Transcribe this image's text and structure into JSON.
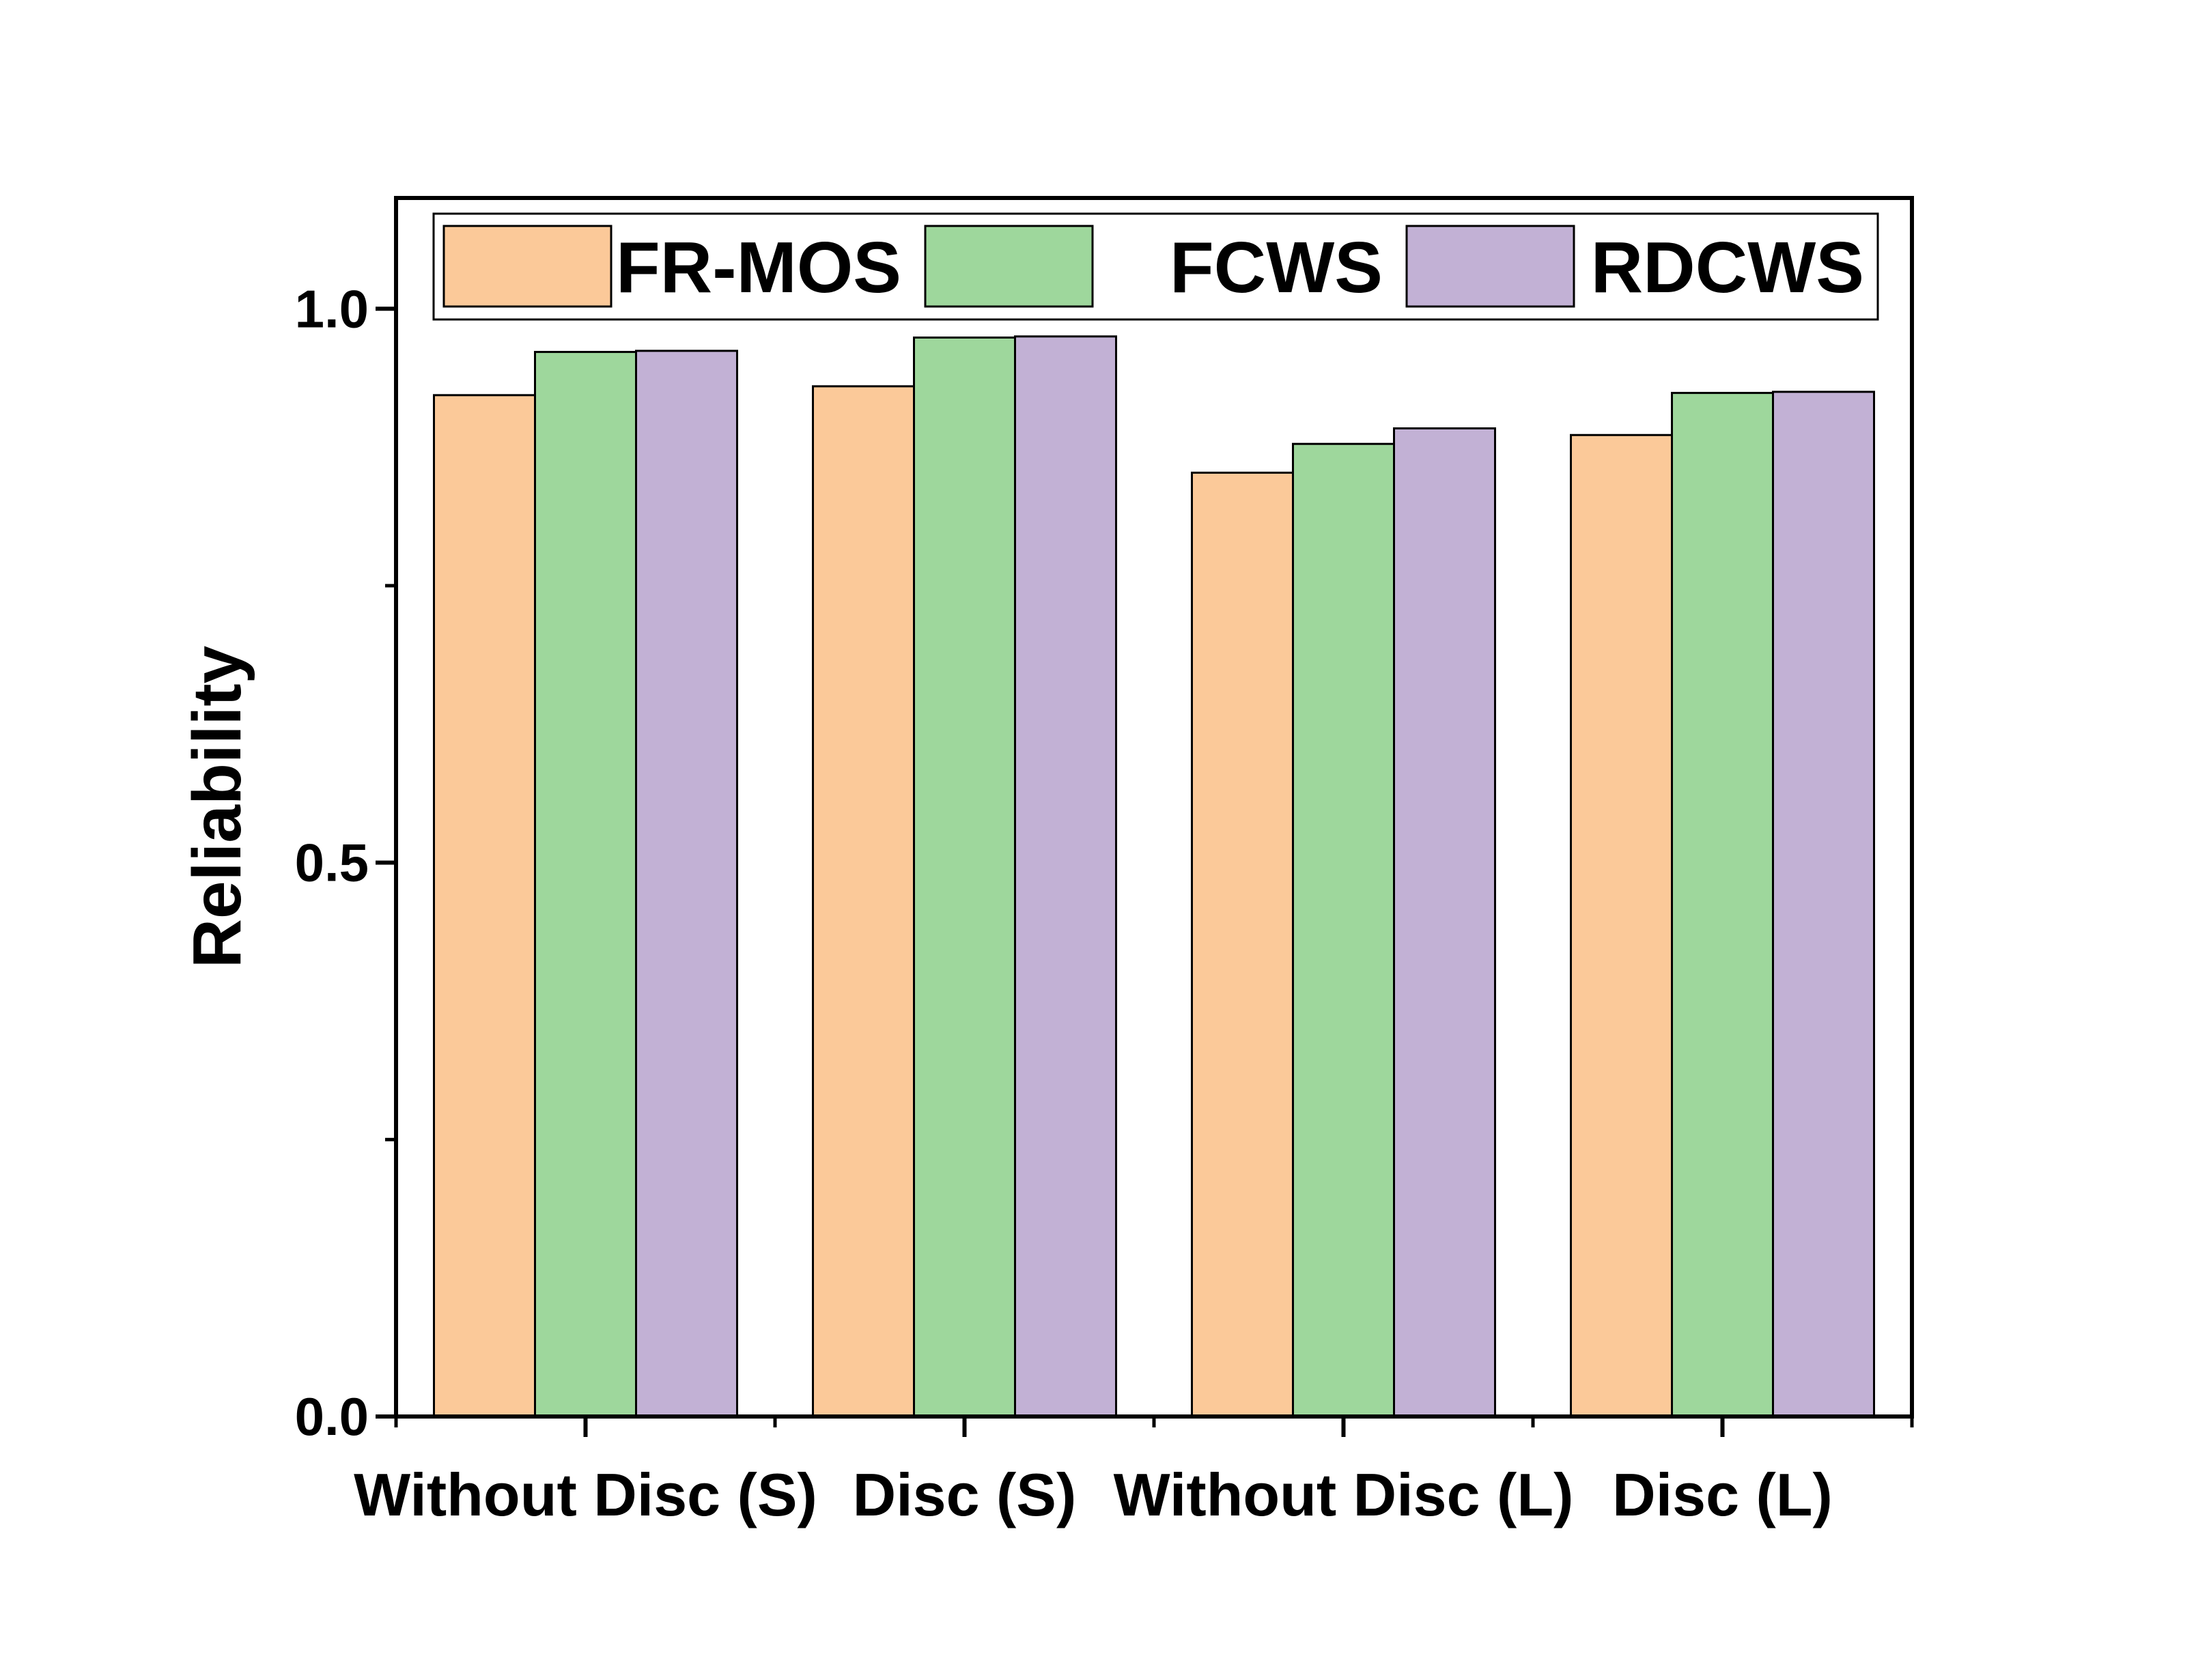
{
  "chart_data": {
    "type": "bar",
    "title": "",
    "xlabel": "",
    "ylabel": "Reliability",
    "ylim": [
      0,
      1.1
    ],
    "yticks": [
      {
        "value": 0.0,
        "label": "0.0"
      },
      {
        "value": 0.5,
        "label": "0.5"
      },
      {
        "value": 1.0,
        "label": "1.0"
      }
    ],
    "yminor_ticks": [
      0.25,
      0.75
    ],
    "categories": [
      "Without Disc (S)",
      "Disc (S)",
      "Without Disc (L)",
      "Disc (L)"
    ],
    "series": [
      {
        "name": "FR-MOS",
        "color": "#FBC999",
        "values": [
          0.922,
          0.93,
          0.852,
          0.886
        ]
      },
      {
        "name": "FCWS",
        "color": "#9ED79C",
        "values": [
          0.961,
          0.974,
          0.878,
          0.924
        ]
      },
      {
        "name": "RDCWS",
        "color": "#C2B1D5",
        "values": [
          0.962,
          0.975,
          0.892,
          0.925
        ]
      }
    ],
    "legend": {
      "position": "top",
      "orientation": "horizontal"
    },
    "grid": false
  }
}
